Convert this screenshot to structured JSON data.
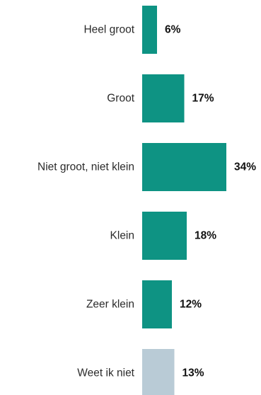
{
  "chart_data": {
    "type": "bar",
    "orientation": "horizontal",
    "title": "",
    "xlabel": "",
    "ylabel": "",
    "categories": [
      "Heel groot",
      "Groot",
      "Niet groot, niet klein",
      "Klein",
      "Zeer klein",
      "Weet ik niet"
    ],
    "values": [
      6,
      17,
      34,
      18,
      12,
      13
    ],
    "value_labels": [
      "6%",
      "17%",
      "34%",
      "18%",
      "12%",
      "13%"
    ],
    "colors": [
      "#0e9383",
      "#0e9383",
      "#0e9383",
      "#0e9383",
      "#0e9383",
      "#b9cbd6"
    ],
    "xlim": [
      0,
      34
    ],
    "grid": false,
    "legend": "none"
  }
}
